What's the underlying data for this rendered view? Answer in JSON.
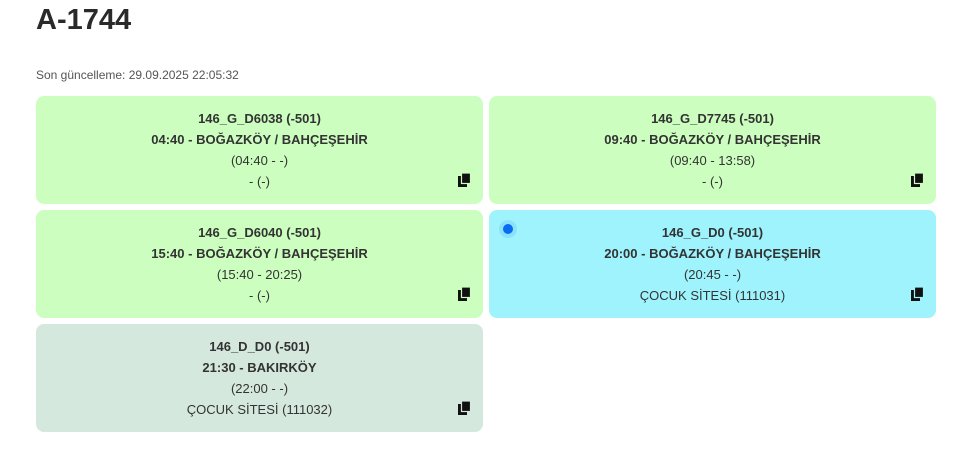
{
  "title": "A-1744",
  "last_updated": "Son güncelleme: 29.09.2025 22:05:32",
  "colors": {
    "green": "#ccffbf",
    "cyan": "#9ef3fd",
    "gray": "#d5e8de",
    "active_dot": "#0a6cf0"
  },
  "cards": [
    {
      "code": "146_G_D6038 (-501)",
      "route": "04:40 - BOĞAZKÖY / BAHÇEŞEHİR",
      "times": "(04:40 - -)",
      "location": "- (-)",
      "active": false
    },
    {
      "code": "146_G_D7745 (-501)",
      "route": "09:40 - BOĞAZKÖY / BAHÇEŞEHİR",
      "times": "(09:40 - 13:58)",
      "location": "- (-)",
      "active": false
    },
    {
      "code": "146_G_D6040 (-501)",
      "route": "15:40 - BOĞAZKÖY / BAHÇEŞEHİR",
      "times": "(15:40 - 20:25)",
      "location": "- (-)",
      "active": false
    },
    {
      "code": "146_G_D0 (-501)",
      "route": "20:00 - BOĞAZKÖY / BAHÇEŞEHİR",
      "times": "(20:45 - -)",
      "location": "ÇOCUK SİTESİ (111031)",
      "active": true
    },
    {
      "code": "146_D_D0 (-501)",
      "route": "21:30 - BAKIRKÖY",
      "times": "(22:00 - -)",
      "location": "ÇOCUK SİTESİ (111032)",
      "active": false
    }
  ]
}
